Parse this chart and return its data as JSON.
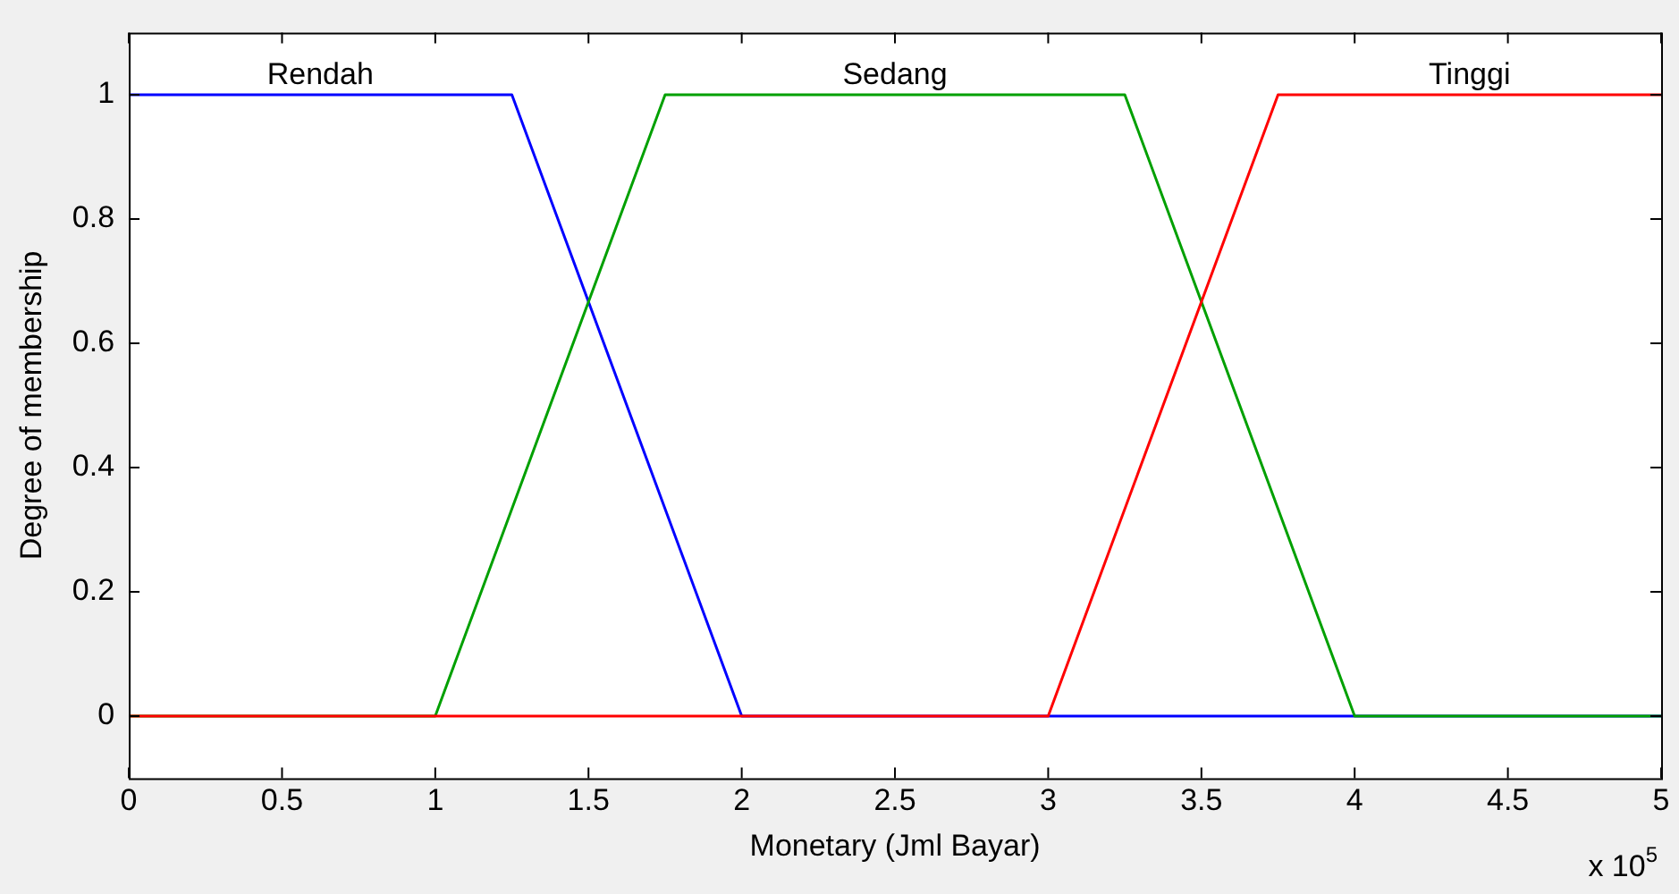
{
  "chart_data": {
    "type": "line",
    "xlabel": "Monetary (Jml Bayar)",
    "ylabel": "Degree of membership",
    "annotations": [
      "x 10$^{5}$"
    ],
    "series": [
      {
        "name": "Rendah",
        "color": "#0000ff",
        "x": [
          0,
          1.25,
          2,
          5
        ],
        "values": [
          1,
          1,
          0,
          0
        ]
      },
      {
        "name": "Sedang",
        "color": "#00a000",
        "x": [
          0,
          1,
          1.75,
          3.25,
          4,
          5
        ],
        "values": [
          0,
          0,
          1,
          1,
          0,
          0
        ]
      },
      {
        "name": "Tinggi",
        "color": "#ff0000",
        "x": [
          0,
          3,
          3.75,
          5
        ],
        "values": [
          0,
          0,
          1,
          1
        ]
      }
    ],
    "xlim": [
      0,
      5
    ],
    "xticks": [
      0,
      0.5,
      1,
      1.5,
      2,
      2.5,
      3,
      3.5,
      4,
      4.5,
      5
    ],
    "ylim": [
      -0.1,
      1.1
    ],
    "yticks": [
      0,
      0.2,
      0.4,
      0.6,
      0.8,
      1
    ],
    "grid": false,
    "legend": false
  }
}
